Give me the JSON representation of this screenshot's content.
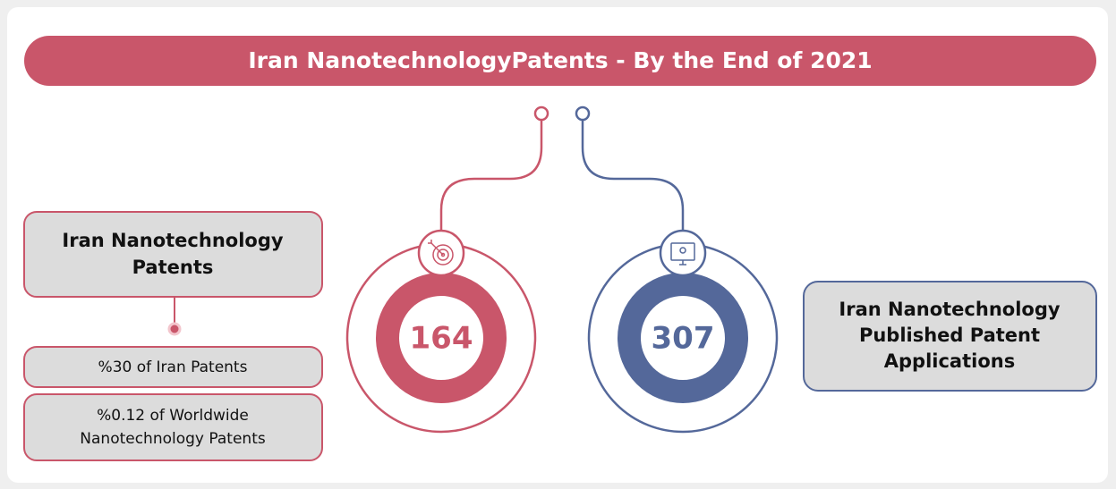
{
  "title": "Iran NanotechnologyPatents - By the End of 2021",
  "left": {
    "label_lines": [
      "Iran Nanotechnology",
      "Patents"
    ],
    "value": 164,
    "notes": [
      {
        "lines": [
          "%30 of Iran Patents"
        ]
      },
      {
        "lines": [
          "%0.12 of Worldwide",
          "Nanotechnology Patents"
        ]
      }
    ]
  },
  "right": {
    "label_lines": [
      "Iran Nanotechnology",
      "Published Patent",
      "Applications"
    ],
    "value": 307
  }
}
